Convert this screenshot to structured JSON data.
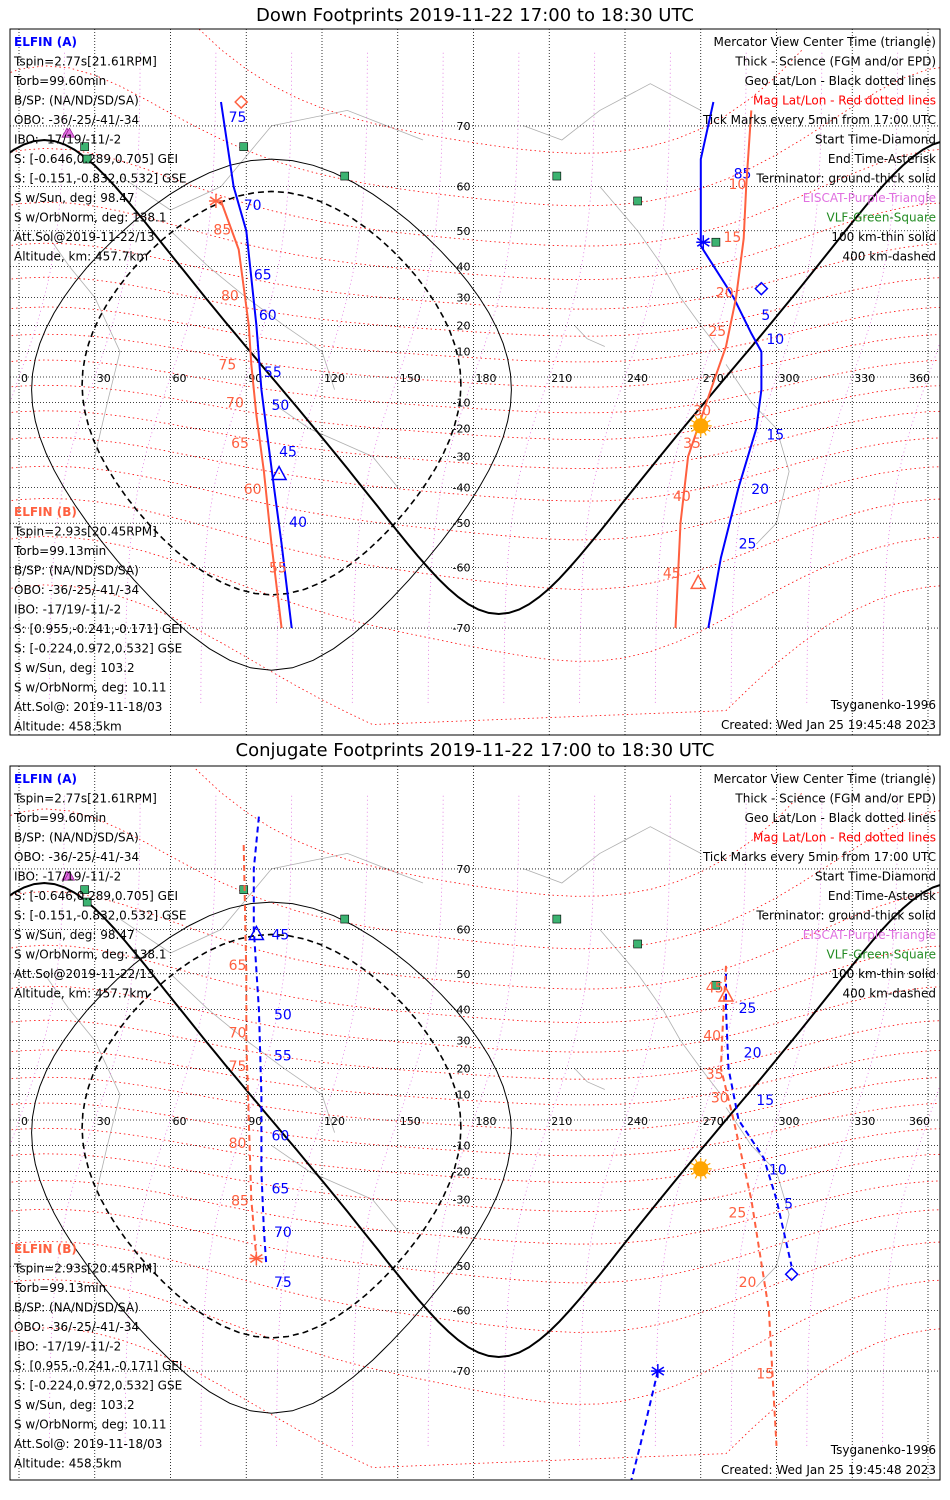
{
  "colors": {
    "elfin_a": "#0000ff",
    "elfin_b": "#ff6040",
    "mag_grid": "#ff0000",
    "eiscat": "#e070e0",
    "vlf": "#228b22",
    "vlf_fill": "#3cb371",
    "sun": "#ffa500"
  },
  "axis_labels": {
    "lon": [
      "0",
      "30",
      "60",
      "90",
      "120",
      "150",
      "180",
      "210",
      "240",
      "270",
      "300",
      "330",
      "360"
    ],
    "lat": [
      "70",
      "60",
      "50",
      "40",
      "30",
      "20",
      "10",
      "-10",
      "-20",
      "-30",
      "-40",
      "-50",
      "-60",
      "-70"
    ]
  },
  "panels": [
    {
      "title": "Down Footprints 2019-11-22 17:00 to 18:30 UTC",
      "elfin_a_block": [
        "ELFIN (A)",
        "Tspin=2.77s[21.61RPM]",
        "Torb=99.60min",
        "B/SP: (NA/ND/SD/SA)",
        "OBO: -36/-25/-41/-34",
        "IBO: -17/19/-11/-2",
        "S: [-0.646,0.289,0.705] GEI",
        "S: [-0.151,-0.832,0.532] GSE",
        "S w/Sun, deg: 98.47",
        "S w/OrbNorm, deg: 138.1",
        "Att.Sol@2019-11-22/13",
        "Altitude, km: 457.7km"
      ],
      "elfin_b_block": [
        "ELFIN (B)",
        "Tspin=2.93s[20.45RPM]",
        "Torb=99.13min",
        "B/SP: (NA/ND/SD/SA)",
        "OBO: -36/-25/-41/-34",
        "IBO: -17/19/-11/-2",
        "S: [0.955,-0.241,-0.171] GEI",
        "S: [-0.224,0.972,0.532] GSE",
        "S w/Sun, deg: 103.2",
        "S w/OrbNorm, deg: 10.11",
        "Att.Sol@: 2019-11-18/03",
        "Altitude: 458.5km"
      ],
      "legend": [
        "Mercator View Center Time (triangle)",
        "Thick - Science (FGM and/or EPD)",
        "Geo Lat/Lon - Black dotted lines",
        "Mag Lat/Lon - Red dotted lines",
        "Tick Marks every 5min from 17:00 UTC",
        "Start Time-Diamond",
        "End Time-Asterisk",
        "Terminator: ground-thick solid",
        "EISCAT-Purple-Triangle",
        "VLF-Green-Square",
        "100 km-thin solid",
        "400 km-dashed"
      ],
      "model": "Tsyganenko-1996",
      "created": "Created: Wed Jan 25 19:45:48 2023",
      "tracks": [
        {
          "id": "a-west",
          "color": "blue",
          "dashed": false,
          "points": [
            [
              80,
              73
            ],
            [
              85,
              60
            ],
            [
              90,
              50
            ],
            [
              94,
              20
            ],
            [
              96,
              -5
            ],
            [
              98,
              -20
            ],
            [
              101,
              -40
            ],
            [
              104,
              -55
            ],
            [
              108,
              -70
            ]
          ],
          "ticks": [
            {
              "label": "75",
              "lon": 83,
              "lat": 70.5
            },
            {
              "label": "70",
              "lon": 89,
              "lat": 55
            },
            {
              "label": "65",
              "lon": 93,
              "lat": 36
            },
            {
              "label": "60",
              "lon": 95,
              "lat": 22
            },
            {
              "label": "55",
              "lon": 97,
              "lat": 0
            },
            {
              "label": "50",
              "lon": 100,
              "lat": -13
            },
            {
              "label": "45",
              "lon": 103,
              "lat": -30
            },
            {
              "label": "40",
              "lon": 107,
              "lat": -51
            }
          ]
        },
        {
          "id": "a-east",
          "color": "blue",
          "dashed": false,
          "points": [
            [
              275,
              73
            ],
            [
              270,
              65
            ],
            [
              270,
              46
            ],
            [
              283,
              30
            ],
            [
              290,
              17
            ],
            [
              294,
              10
            ],
            [
              294,
              -5
            ],
            [
              292,
              -20
            ],
            [
              285,
              -40
            ],
            [
              278,
              -58
            ],
            [
              273,
              -70
            ]
          ],
          "ticks": [
            {
              "label": "85",
              "lon": 283,
              "lat": 61.5
            },
            {
              "label": "5",
              "lon": 294,
              "lat": 22
            },
            {
              "label": "10",
              "lon": 296,
              "lat": 13
            },
            {
              "label": "15",
              "lon": 296,
              "lat": -24
            },
            {
              "label": "20",
              "lon": 290,
              "lat": -42
            },
            {
              "label": "25",
              "lon": 285,
              "lat": -56
            }
          ]
        },
        {
          "id": "b-west",
          "color": "red",
          "dashed": false,
          "points": [
            [
              80,
              57
            ],
            [
              87,
              45
            ],
            [
              91,
              20
            ],
            [
              92,
              5
            ],
            [
              94,
              -15
            ],
            [
              97,
              -35
            ],
            [
              100,
              -55
            ],
            [
              104,
              -70
            ]
          ],
          "ticks": [
            {
              "label": "85",
              "lon": 77,
              "lat": 49
            },
            {
              "label": "80",
              "lon": 80,
              "lat": 29
            },
            {
              "label": "75",
              "lon": 79,
              "lat": 3
            },
            {
              "label": "70",
              "lon": 82,
              "lat": -12
            },
            {
              "label": "65",
              "lon": 84,
              "lat": -27
            },
            {
              "label": "60",
              "lon": 89,
              "lat": -42
            },
            {
              "label": "55",
              "lon": 99,
              "lat": -61
            }
          ]
        },
        {
          "id": "b-east",
          "color": "red",
          "dashed": false,
          "points": [
            [
              290,
              72
            ],
            [
              288,
              60
            ],
            [
              287,
              48
            ],
            [
              284,
              30
            ],
            [
              280,
              12
            ],
            [
              274,
              -5
            ],
            [
              265,
              -30
            ],
            [
              262,
              -50
            ],
            [
              260,
              -70
            ]
          ],
          "ticks": [
            {
              "label": "10",
              "lon": 281,
              "lat": 59.5
            },
            {
              "label": "15",
              "lon": 279,
              "lat": 47
            },
            {
              "label": "20",
              "lon": 276,
              "lat": 30
            },
            {
              "label": "25",
              "lon": 273,
              "lat": 16
            },
            {
              "label": "30",
              "lon": 267,
              "lat": -15
            },
            {
              "label": "35",
              "lon": 263,
              "lat": -27
            },
            {
              "label": "40",
              "lon": 259,
              "lat": -44
            },
            {
              "label": "45",
              "lon": 255,
              "lat": -62
            }
          ]
        }
      ],
      "markers": [
        {
          "type": "diamond",
          "color": "red",
          "lon": 88,
          "lat": 73
        },
        {
          "type": "asterisk",
          "color": "red",
          "lon": 78,
          "lat": 57
        },
        {
          "type": "triangle",
          "color": "blue",
          "lon": 103,
          "lat": -36
        },
        {
          "type": "asterisk",
          "color": "blue",
          "lon": 271,
          "lat": 47
        },
        {
          "type": "diamond",
          "color": "blue",
          "lon": 294,
          "lat": 33
        },
        {
          "type": "triangle",
          "color": "red",
          "lon": 269,
          "lat": -63
        },
        {
          "type": "sun",
          "color": "sun",
          "lon": 270,
          "lat": -19
        }
      ]
    },
    {
      "title": "Conjugate Footprints 2019-11-22 17:00 to 18:30 UTC",
      "elfin_a_block": [
        "ELFIN (A)",
        "Tspin=2.77s[21.61RPM]",
        "Torb=99.60min",
        "B/SP: (NA/ND/SD/SA)",
        "OBO: -36/-25/-41/-34",
        "IBO: -17/19/-11/-2",
        "S: [-0.646,0.289,0.705] GEI",
        "S: [-0.151,-0.832,0.532] GSE",
        "S w/Sun, deg: 98.47",
        "S w/OrbNorm, deg: 138.1",
        "Att.Sol@2019-11-22/13",
        "Altitude, km: 457.7km"
      ],
      "elfin_b_block": [
        "ELFIN (B)",
        "Tspin=2.93s[20.45RPM]",
        "Torb=99.13min",
        "B/SP: (NA/ND/SD/SA)",
        "OBO: -36/-25/-41/-34",
        "IBO: -17/19/-11/-2",
        "S: [0.955,-0.241,-0.171] GEI",
        "S: [-0.224,0.972,0.532] GSE",
        "S w/Sun, deg: 103.2",
        "S w/OrbNorm, deg: 10.11",
        "Att.Sol@: 2019-11-18/03",
        "Altitude: 458.5km"
      ],
      "legend": [
        "Mercator View Center Time (triangle)",
        "Thick - Science (FGM and/or EPD)",
        "Geo Lat/Lon - Black dotted lines",
        "Mag Lat/Lon - Red dotted lines",
        "Tick Marks every 5min from 17:00 UTC",
        "Start Time-Diamond",
        "End Time-Asterisk",
        "Terminator: ground-thick solid",
        "EISCAT-Purple-Triangle",
        "VLF-Green-Square",
        "100 km-thin solid",
        "400 km-dashed"
      ],
      "model": "Tsyganenko-1996",
      "created": "Created: Wed Jan 25 19:45:48 2023",
      "tracks": [
        {
          "id": "a-west",
          "color": "blue",
          "dashed": true,
          "points": [
            [
              95,
              76
            ],
            [
              93,
              70
            ],
            [
              93,
              60
            ],
            [
              95,
              40
            ],
            [
              96,
              10
            ],
            [
              96,
              -20
            ],
            [
              97,
              -40
            ],
            [
              98,
              -50
            ]
          ],
          "ticks": [
            {
              "label": "45",
              "lon": 100,
              "lat": 58
            },
            {
              "label": "50",
              "lon": 101,
              "lat": 37
            },
            {
              "label": "55",
              "lon": 101,
              "lat": 23
            },
            {
              "label": "60",
              "lon": 100,
              "lat": -8
            },
            {
              "label": "65",
              "lon": 100,
              "lat": -28
            },
            {
              "label": "70",
              "lon": 101,
              "lat": -42
            },
            {
              "label": "75",
              "lon": 101,
              "lat": -55
            }
          ]
        },
        {
          "id": "a-east",
          "color": "blue",
          "dashed": true,
          "points": [
            [
              280,
              50
            ],
            [
              280,
              40
            ],
            [
              281,
              20
            ],
            [
              285,
              0
            ],
            [
              295,
              -15
            ],
            [
              300,
              -30
            ],
            [
              306,
              -50
            ]
          ],
          "ticks": [
            {
              "label": "25",
              "lon": 285,
              "lat": 39
            },
            {
              "label": "20",
              "lon": 287,
              "lat": 24
            },
            {
              "label": "15",
              "lon": 292,
              "lat": 6
            },
            {
              "label": "10",
              "lon": 297,
              "lat": -21
            },
            {
              "label": "5",
              "lon": 303,
              "lat": -33
            }
          ]
        },
        {
          "id": "a-antarctic",
          "color": "blue",
          "dashed": true,
          "points": [
            [
              253,
              -70
            ],
            [
              246,
              -78
            ],
            [
              240,
              -82
            ]
          ],
          "ticks": []
        },
        {
          "id": "b-west",
          "color": "red",
          "dashed": true,
          "points": [
            [
              89,
              73
            ],
            [
              90,
              50
            ],
            [
              90,
              30
            ],
            [
              91,
              0
            ],
            [
              92,
              -30
            ],
            [
              94,
              -48
            ]
          ],
          "ticks": [
            {
              "label": "65",
              "lon": 83,
              "lat": 51
            },
            {
              "label": "70",
              "lon": 83,
              "lat": 31
            },
            {
              "label": "75",
              "lon": 83,
              "lat": 19
            },
            {
              "label": "80",
              "lon": 83,
              "lat": -11
            },
            {
              "label": "85",
              "lon": 84,
              "lat": -32
            }
          ]
        },
        {
          "id": "b-east",
          "color": "red",
          "dashed": true,
          "points": [
            [
              280,
              52
            ],
            [
              279,
              40
            ],
            [
              278,
              20
            ],
            [
              283,
              0
            ],
            [
              290,
              -30
            ],
            [
              297,
              -60
            ],
            [
              300,
              -78
            ]
          ],
          "ticks": [
            {
              "label": "45",
              "lon": 272,
              "lat": 45
            },
            {
              "label": "40",
              "lon": 271,
              "lat": 30
            },
            {
              "label": "35",
              "lon": 272,
              "lat": 16
            },
            {
              "label": "30",
              "lon": 274,
              "lat": 7
            },
            {
              "label": "25",
              "lon": 281,
              "lat": -36
            },
            {
              "label": "20",
              "lon": 285,
              "lat": -55
            },
            {
              "label": "15",
              "lon": 292,
              "lat": -71
            }
          ]
        }
      ],
      "markers": [
        {
          "type": "triangle",
          "color": "blue",
          "lon": 94,
          "lat": 59
        },
        {
          "type": "asterisk",
          "color": "red",
          "lon": 94,
          "lat": -48
        },
        {
          "type": "triangle",
          "color": "red",
          "lon": 280,
          "lat": 44
        },
        {
          "type": "diamond",
          "color": "blue",
          "lon": 306,
          "lat": -52
        },
        {
          "type": "asterisk",
          "color": "blue",
          "lon": 253,
          "lat": -70
        },
        {
          "type": "sun",
          "color": "sun",
          "lon": 270,
          "lat": -19
        }
      ]
    }
  ],
  "stations": {
    "vlf": [
      {
        "lon": 26,
        "lat": 67
      },
      {
        "lon": 27,
        "lat": 65
      },
      {
        "lon": 89,
        "lat": 67
      },
      {
        "lon": 129,
        "lat": 62
      },
      {
        "lon": 213,
        "lat": 62
      },
      {
        "lon": 245,
        "lat": 57
      },
      {
        "lon": 276,
        "lat": 47
      }
    ],
    "eiscat": [
      {
        "lon": 19,
        "lat": 69
      },
      {
        "lon": 20,
        "lat": 69
      }
    ]
  }
}
